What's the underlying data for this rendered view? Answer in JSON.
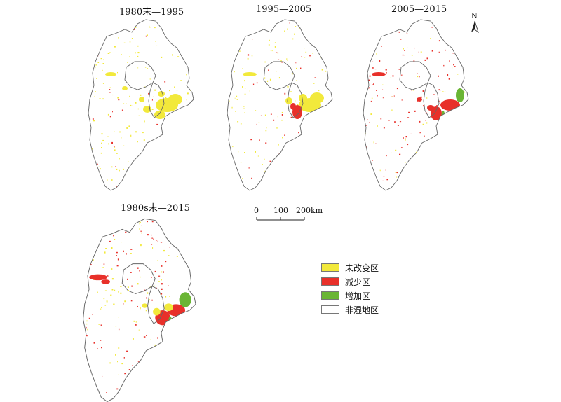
{
  "panels": [
    {
      "title": "1980末—1995"
    },
    {
      "title": "1995—2005"
    },
    {
      "title": "2005—2015"
    },
    {
      "title": "1980s末—2015"
    }
  ],
  "legend": [
    {
      "label": "未改变区",
      "color": "#f2e93b"
    },
    {
      "label": "减少区",
      "color": "#e8302a"
    },
    {
      "label": "增加区",
      "color": "#6ab534"
    },
    {
      "label": "非湿地区",
      "color": "#ffffff"
    }
  ],
  "scale": {
    "labels": [
      "0",
      "100",
      "200km"
    ]
  },
  "north": {
    "label": "N"
  }
}
